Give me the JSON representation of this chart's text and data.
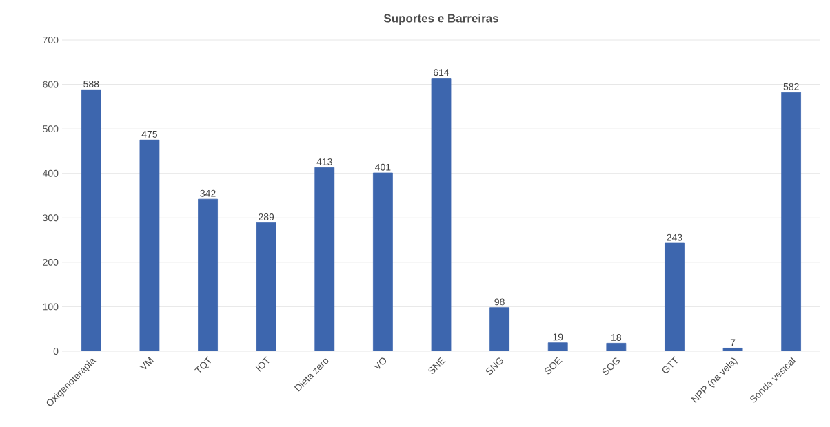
{
  "chart_data": {
    "type": "bar",
    "title": "Suportes e Barreiras",
    "categories": [
      "Oxigenoterapia",
      "VM",
      "TQT",
      "IOT",
      "Dieta zero",
      "VO",
      "SNE",
      "SNG",
      "SOE",
      "SOG",
      "GTT",
      "NPP (na veia)",
      "Sonda vesical"
    ],
    "values": [
      588,
      475,
      342,
      289,
      413,
      401,
      614,
      98,
      19,
      18,
      243,
      7,
      582
    ],
    "color": "#3d66ae",
    "ylim": [
      0,
      700
    ],
    "yticks": [
      0,
      100,
      200,
      300,
      400,
      500,
      600,
      700
    ],
    "grid": "y",
    "data_labels": true
  }
}
